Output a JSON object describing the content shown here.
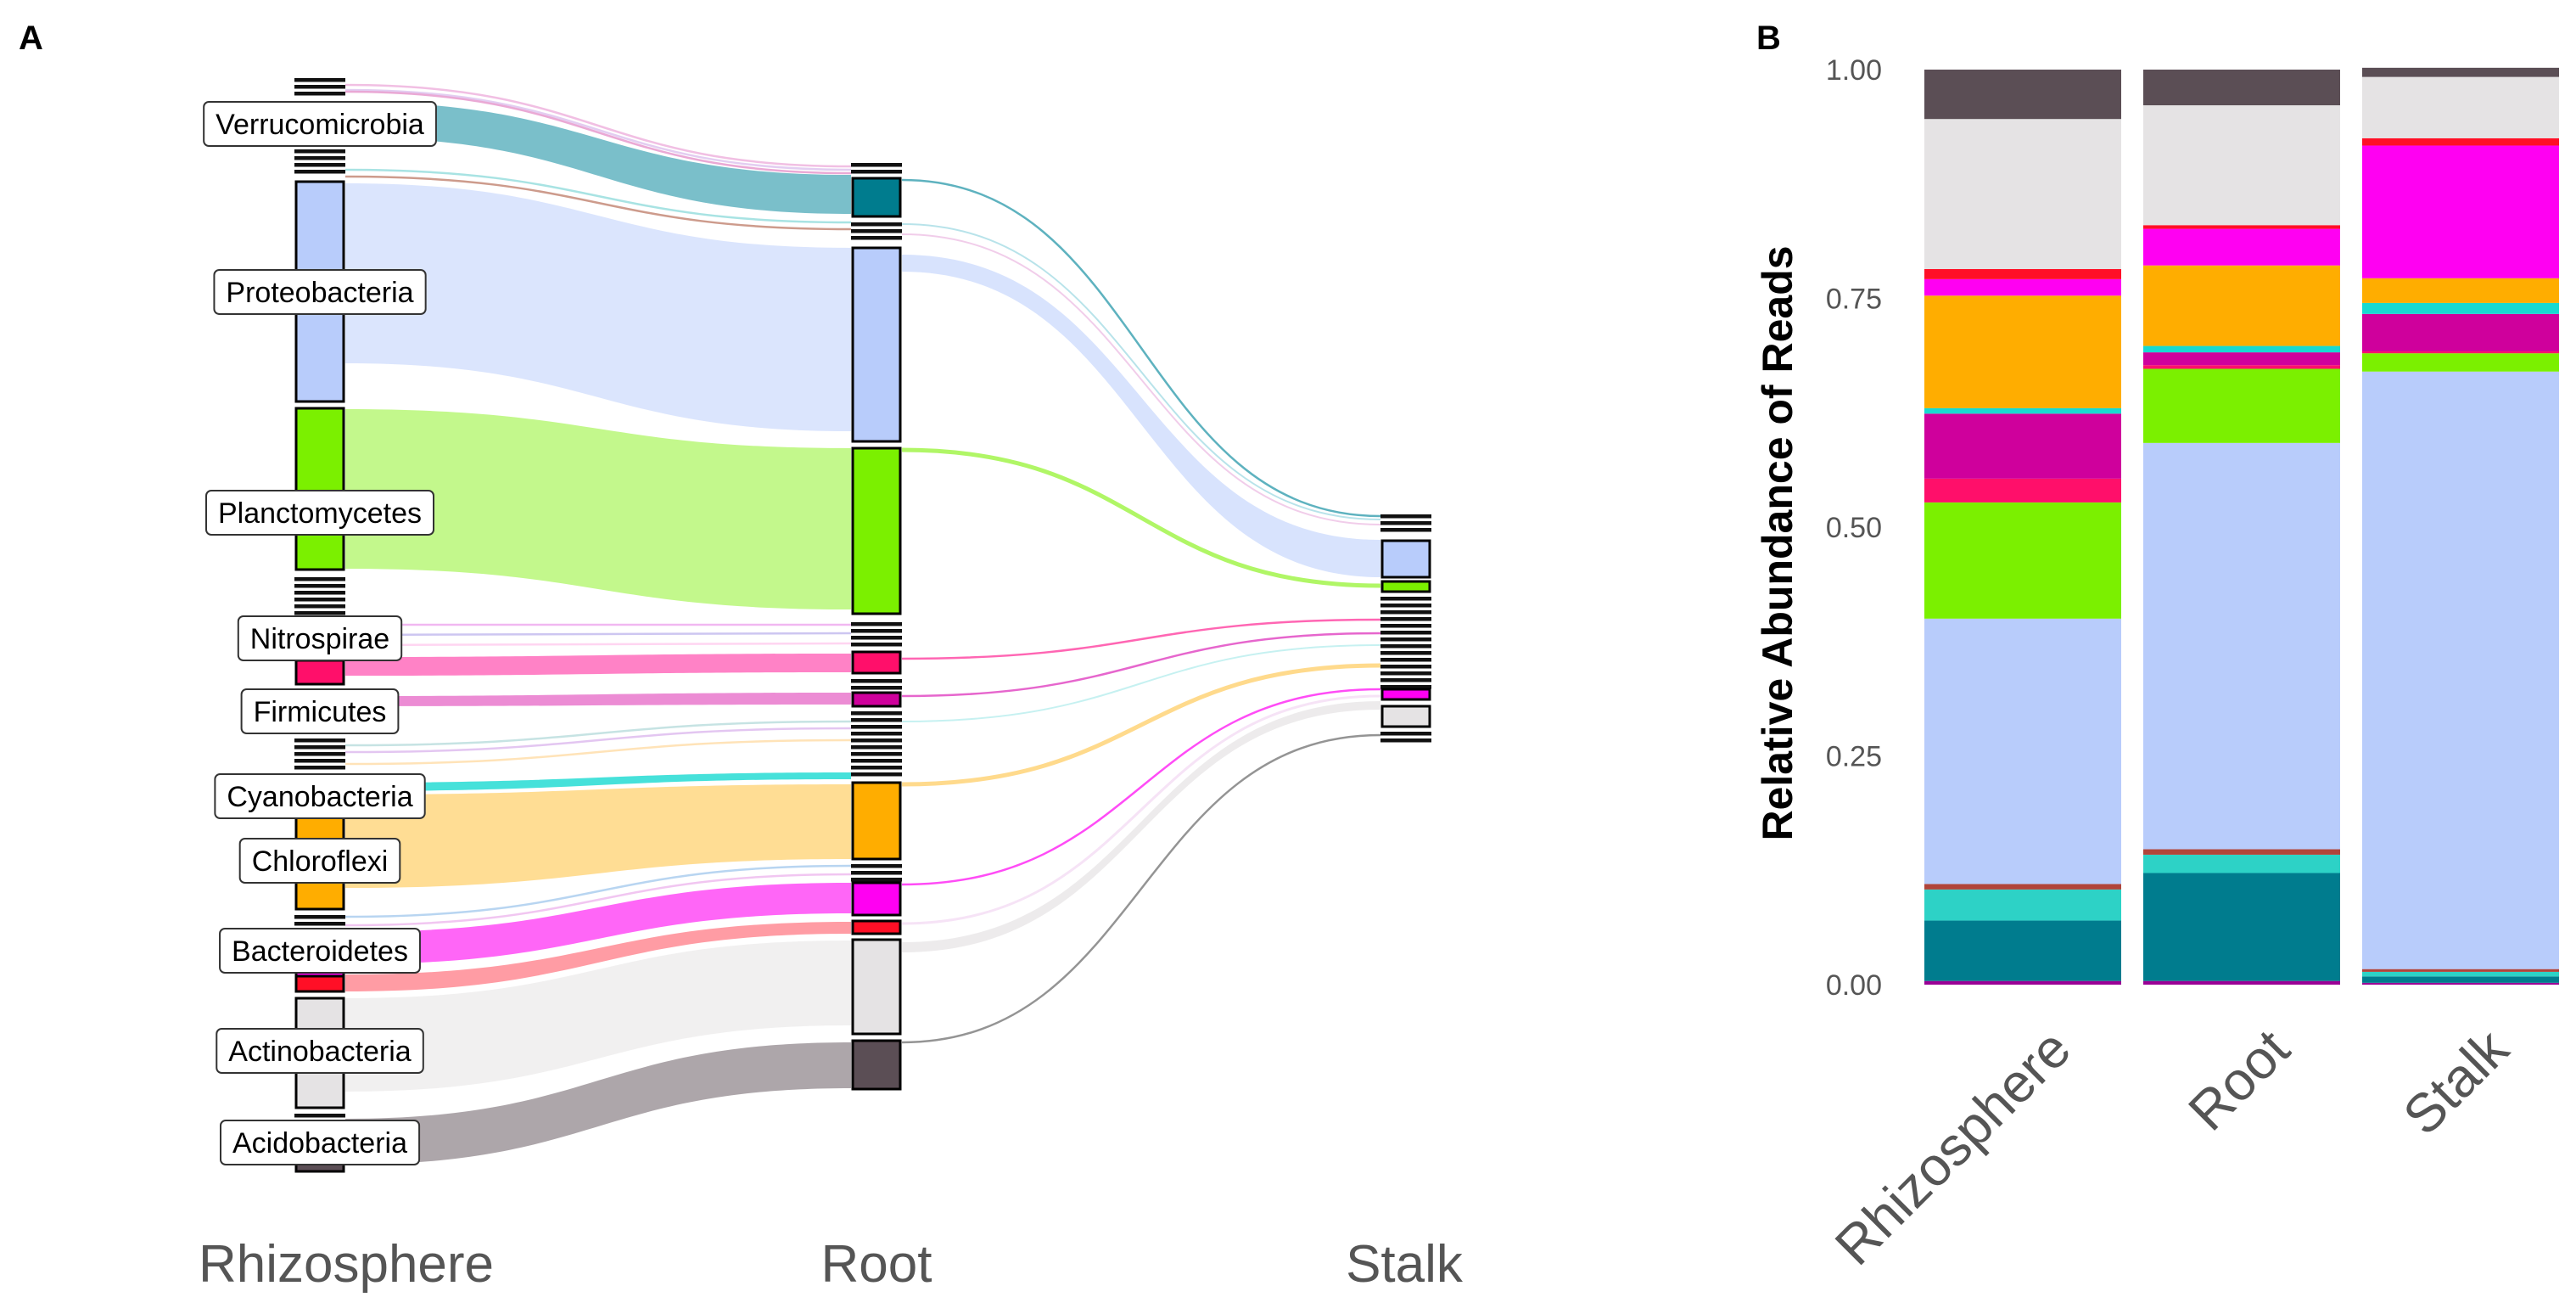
{
  "panels": {
    "a_letter": "A",
    "b_letter": "B"
  },
  "colors": {
    "Acidobacteria": "#5B4E55",
    "Actinobacteria": "#E5E3E4",
    "Bacteroidetes": "#FF00F2",
    "Chloroflexi": "#FFAD00",
    "Cyanobacteria": "#18D9D1",
    "Firmicutes": "#CF009C",
    "Nitrospirae": "#FF0F6A",
    "Planctomycetes": "#7BF000",
    "Proteobacteria": "#B8CCFB",
    "Verrucomicrobia": "#007C8E",
    "other_red": "#FF0F26",
    "other_teal": "#2DD2C6",
    "other_brown": "#B0443A"
  },
  "alluvial": {
    "stages": [
      "Rhizosphere",
      "Root",
      "Stalk"
    ],
    "phylum_labels": [
      "Verrucomicrobia",
      "Proteobacteria",
      "Planctomycetes",
      "Nitrospirae",
      "Firmicutes",
      "Cyanobacteria",
      "Chloroflexi",
      "Bacteroidetes",
      "Actinobacteria",
      "Acidobacteria"
    ]
  },
  "chart_data": {
    "type": "bar",
    "stacked": true,
    "categories": [
      "Rhizosphere",
      "Root",
      "Stalk"
    ],
    "xlabel": "",
    "ylabel": "Relative Abundance of Reads",
    "ylim": [
      0,
      1
    ],
    "yticks": [
      "0.00",
      "0.25",
      "0.50",
      "0.75",
      "1.00"
    ],
    "grid": false,
    "legend": "none",
    "series": [
      {
        "color": "#9A0095",
        "values": [
          0.004,
          0.004,
          0.002
        ]
      },
      {
        "color": "#007C8E",
        "values": [
          0.066,
          0.118,
          0.007
        ]
      },
      {
        "color": "#2DD2C6",
        "values": [
          0.034,
          0.02,
          0.005
        ]
      },
      {
        "color": "#B0443A",
        "values": [
          0.006,
          0.006,
          0.003
        ]
      },
      {
        "color": "#B8CCFB",
        "values": [
          0.29,
          0.444,
          0.653
        ]
      },
      {
        "color": "#7BF000",
        "values": [
          0.127,
          0.081,
          0.02
        ]
      },
      {
        "color": "#FF0F6A",
        "values": [
          0.026,
          0.004,
          0.002
        ]
      },
      {
        "color": "#CF009C",
        "values": [
          0.071,
          0.014,
          0.041
        ]
      },
      {
        "color": "#18D9D1",
        "values": [
          0.006,
          0.007,
          0.012
        ]
      },
      {
        "color": "#FFAD00",
        "values": [
          0.123,
          0.088,
          0.027
        ]
      },
      {
        "color": "#FF00F2",
        "values": [
          0.018,
          0.04,
          0.145
        ]
      },
      {
        "color": "#FF0F26",
        "values": [
          0.011,
          0.004,
          0.008
        ]
      },
      {
        "color": "#E5E3E4",
        "values": [
          0.164,
          0.131,
          0.067
        ]
      },
      {
        "color": "#5B4E55",
        "values": [
          0.054,
          0.039,
          0.01
        ]
      }
    ]
  }
}
